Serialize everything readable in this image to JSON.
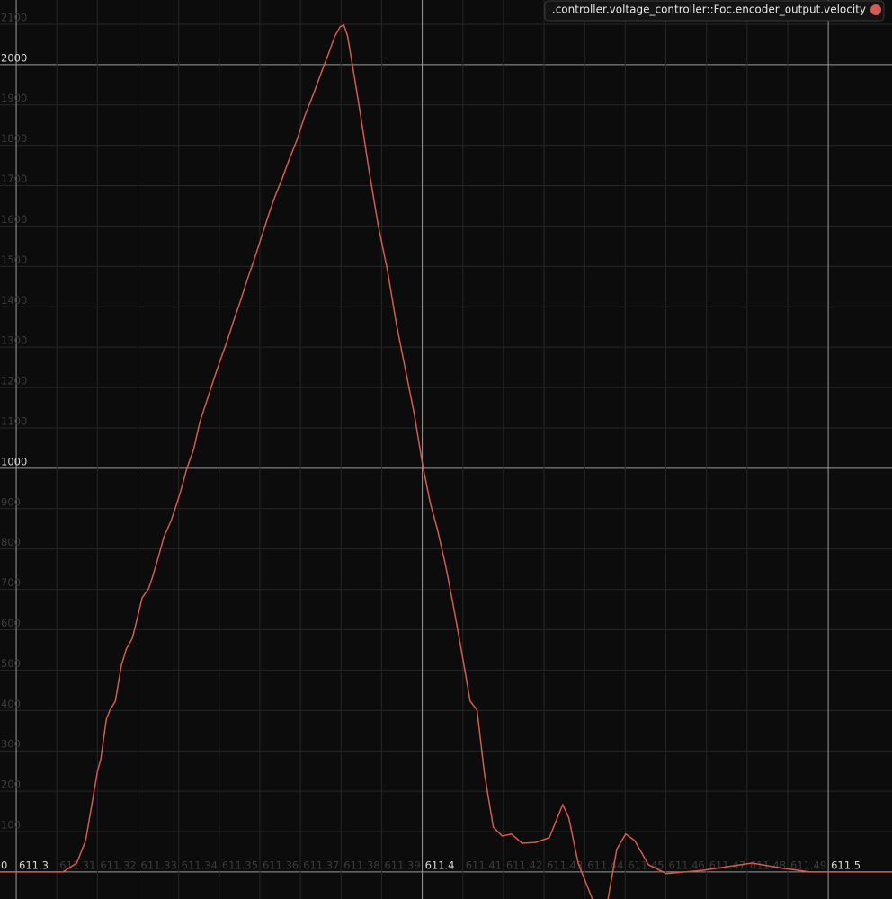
{
  "chart_data": {
    "type": "line",
    "x": [
      611.296,
      611.3115,
      611.3149,
      611.3171,
      611.3188,
      611.32,
      611.3208,
      611.3222,
      611.3231,
      611.3244,
      611.3259,
      611.3271,
      611.3286,
      611.3297,
      611.331,
      611.3326,
      611.3337,
      611.335,
      611.3364,
      611.3381,
      611.3392,
      611.3404,
      611.3421,
      611.3437,
      611.3452,
      611.347,
      611.3488,
      611.3503,
      611.3519,
      611.3537,
      611.3552,
      611.357,
      611.3585,
      611.3603,
      611.3621,
      611.3636,
      611.3654,
      611.367,
      611.3692,
      611.371,
      611.3732,
      611.3752,
      611.3769,
      611.3785,
      611.3798,
      611.3807,
      611.3816,
      611.3829,
      611.3847,
      611.3869,
      611.3891,
      611.3914,
      611.3936,
      611.3958,
      611.398,
      611.4002,
      611.402,
      611.4038,
      611.4058,
      611.4075,
      611.4095,
      611.4118,
      611.4135,
      611.4153,
      611.4175,
      611.4197,
      611.422,
      611.4246,
      611.4279,
      611.4313,
      611.4346,
      611.4361,
      611.4384,
      611.4424,
      611.4457,
      611.4479,
      611.4501,
      611.4523,
      611.4557,
      611.4601,
      611.469,
      611.4812,
      611.4889,
      611.4956,
      611.5157
    ],
    "series": [
      {
        "name": ".controller.voltage_controller::Foc.encoder_output.velocity",
        "color": "#d65a50",
        "values": [
          0,
          0,
          22,
          78,
          178,
          249,
          278,
          379,
          401,
          423,
          512,
          552,
          579,
          624,
          679,
          702,
          735,
          780,
          831,
          869,
          902,
          940,
          1002,
          1047,
          1114,
          1169,
          1225,
          1269,
          1314,
          1370,
          1414,
          1470,
          1514,
          1570,
          1626,
          1670,
          1715,
          1759,
          1815,
          1871,
          1927,
          1982,
          2027,
          2071,
          2094,
          2098,
          2071,
          1993,
          1882,
          1737,
          1604,
          1492,
          1359,
          1247,
          1136,
          1002,
          913,
          846,
          757,
          668,
          557,
          423,
          401,
          245,
          111,
          89,
          94,
          71,
          73,
          85,
          167,
          134,
          22,
          -80,
          -70,
          56,
          94,
          78,
          18,
          -4,
          4,
          22,
          9,
          0,
          0
        ]
      }
    ],
    "xlim": [
      611.296,
      611.5157
    ],
    "ylim": [
      -67,
      2160
    ],
    "xticks": [
      611.3,
      611.31,
      611.32,
      611.33,
      611.34,
      611.35,
      611.36,
      611.37,
      611.38,
      611.39,
      611.4,
      611.41,
      611.42,
      611.43,
      611.44,
      611.45,
      611.46,
      611.47,
      611.48,
      611.49,
      611.5
    ],
    "yticks": [
      0,
      100,
      200,
      300,
      400,
      500,
      600,
      700,
      800,
      900,
      1000,
      1100,
      1200,
      1300,
      1400,
      1500,
      1600,
      1700,
      1800,
      1900,
      2000,
      2100
    ],
    "grid": true,
    "legend": "top-right"
  }
}
